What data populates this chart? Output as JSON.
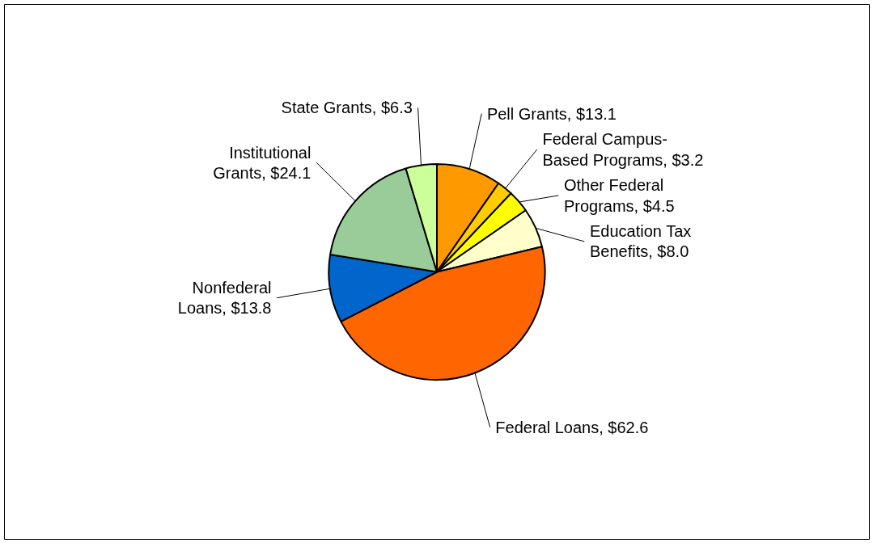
{
  "chart_data": {
    "type": "pie",
    "categories": [
      "Pell Grants",
      "Federal Campus-Based Programs",
      "Other Federal Programs",
      "Education Tax Benefits",
      "Federal Loans",
      "Nonfederal Loans",
      "Institutional Grants",
      "State Grants"
    ],
    "values": [
      13.1,
      3.2,
      4.5,
      8.0,
      62.6,
      13.8,
      24.1,
      6.3
    ],
    "value_labels": [
      "$13.1",
      "$3.2",
      "$4.5",
      "$8.0",
      "$62.6",
      "$13.8",
      "$24.1",
      "$6.3"
    ],
    "colors": [
      "#ff9900",
      "#ffcc00",
      "#ffff00",
      "#ffffcc",
      "#ff6600",
      "#0066cc",
      "#99cc99",
      "#ccff99"
    ],
    "legend": false
  }
}
